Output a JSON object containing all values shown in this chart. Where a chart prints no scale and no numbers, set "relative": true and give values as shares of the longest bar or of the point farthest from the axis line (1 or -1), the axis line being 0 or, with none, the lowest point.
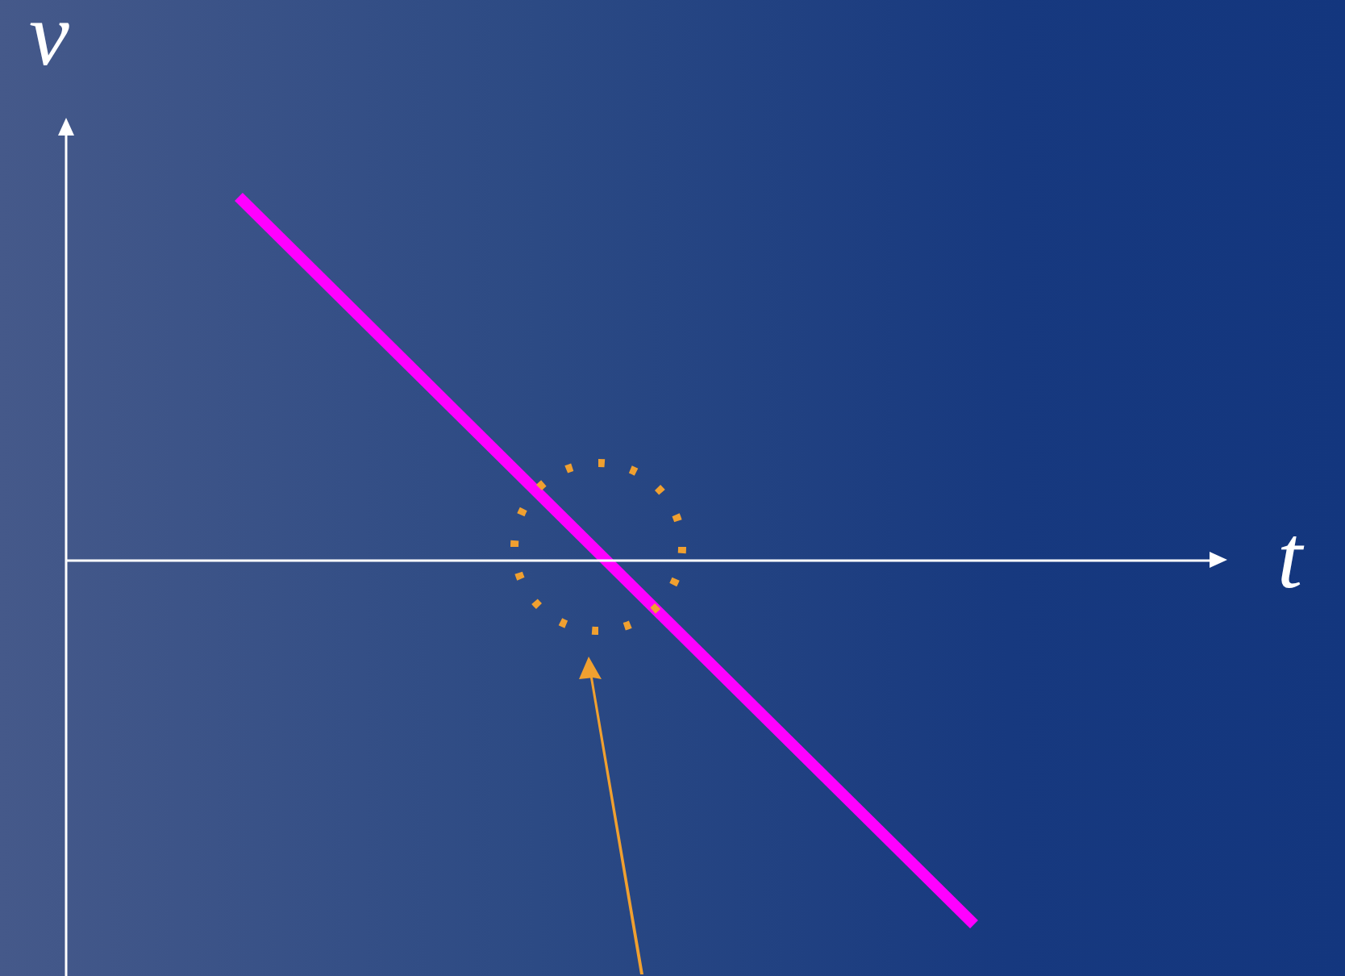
{
  "chart_data": {
    "type": "line",
    "relative": true,
    "xlabel": "t",
    "ylabel": "v",
    "categories": [
      null,
      null
    ],
    "series": [
      {
        "color": "#ff00ff",
        "values": [
          1,
          -1
        ]
      }
    ],
    "legend": false,
    "marker": "none",
    "line_style": "solid"
  }
}
